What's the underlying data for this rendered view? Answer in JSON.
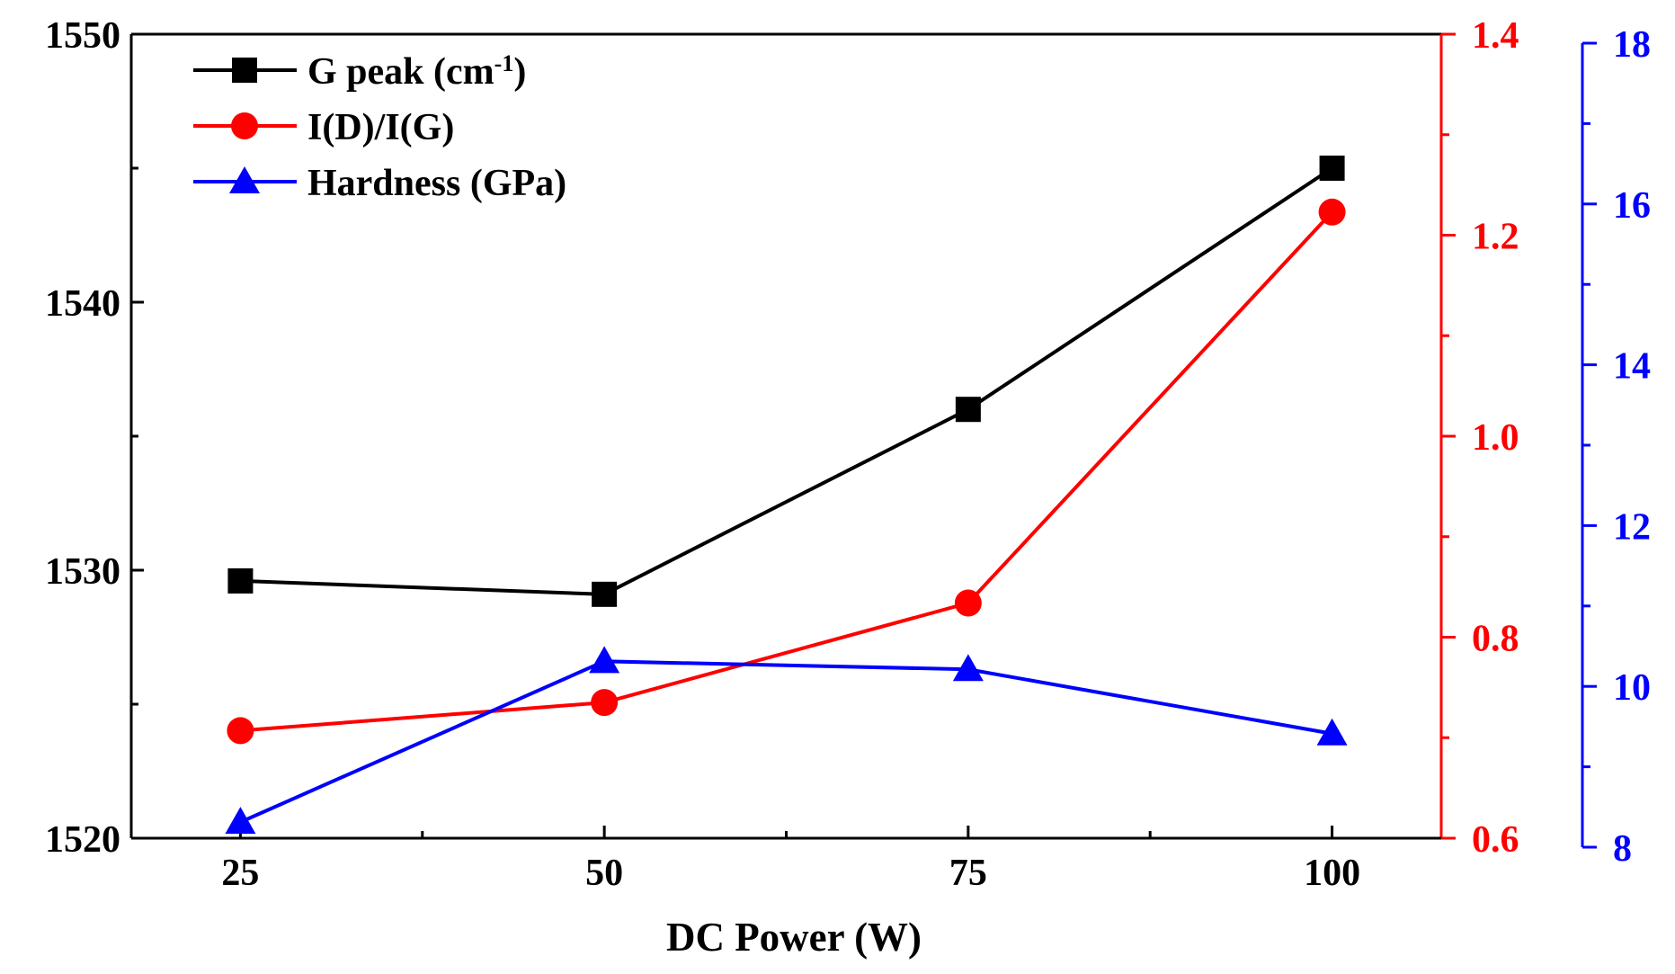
{
  "chart_data": {
    "type": "line",
    "xlabel": "DC Power (W)",
    "x": [
      25,
      50,
      75,
      100
    ],
    "xlim": [
      17.5,
      107.5
    ],
    "x_ticks": [
      "25",
      "50",
      "75",
      "100"
    ],
    "series": [
      {
        "name": "G peak (cm",
        "name_sup": "-1",
        "name_suffix": ")",
        "axis": "left",
        "color": "#000000",
        "marker": "square",
        "values": [
          1529.6,
          1529.1,
          1536.0,
          1545.0
        ]
      },
      {
        "name": "I(D)/I(G)",
        "axis": "right1",
        "color": "#ff0000",
        "marker": "circle",
        "values": [
          0.707,
          0.735,
          0.834,
          1.223
        ]
      },
      {
        "name": "Hardness (GPa)",
        "axis": "right2",
        "color": "#0000ff",
        "marker": "triangle",
        "values": [
          8.2,
          10.2,
          10.1,
          9.3
        ]
      }
    ],
    "axes": {
      "left": {
        "ylim": [
          1520,
          1550
        ],
        "ticks": [
          "1520",
          "1530",
          "1540",
          "1550"
        ],
        "color": "#000000"
      },
      "right1": {
        "ylim": [
          0.6,
          1.4
        ],
        "ticks": [
          "0.6",
          "0.8",
          "1.0",
          "1.2",
          "1.4"
        ],
        "color": "#ff0000"
      },
      "right2": {
        "ylim": [
          8,
          18
        ],
        "ticks": [
          "8",
          "10",
          "12",
          "14",
          "16",
          "18"
        ],
        "color": "#0000ff"
      }
    },
    "legend_position": "top-left",
    "grid": false
  }
}
